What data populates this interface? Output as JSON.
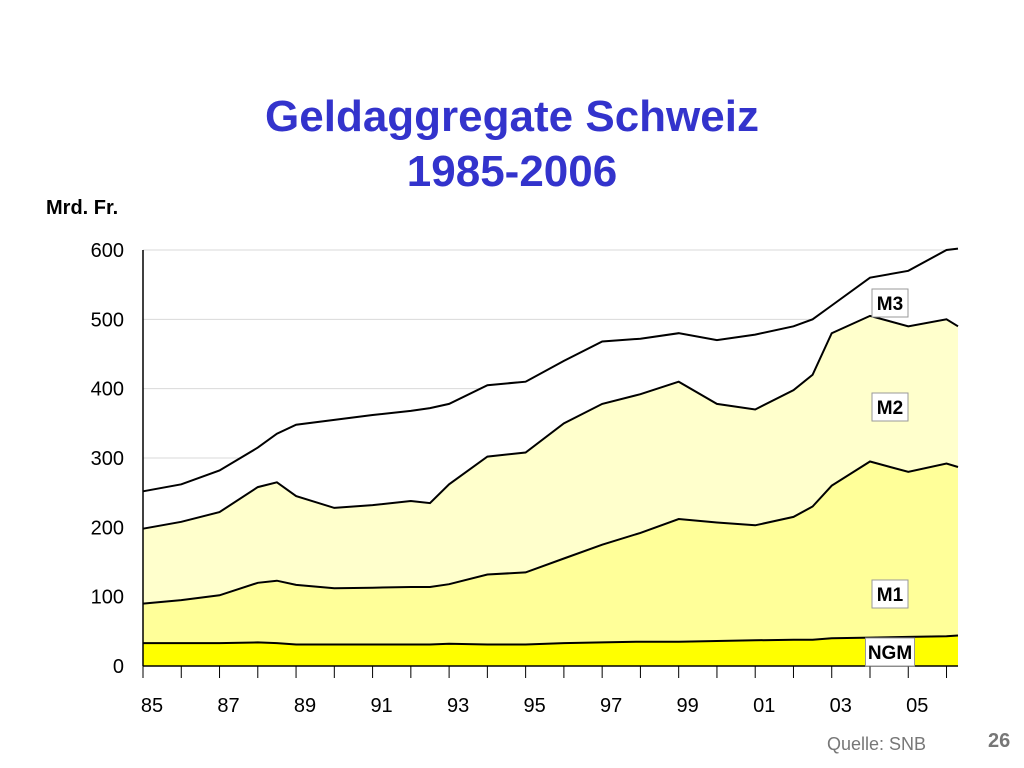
{
  "title_line1": "Geldaggregate Schweiz",
  "title_line2": "1985-2006",
  "unit_label": "Mrd. Fr.",
  "source": "Quelle: SNB",
  "page_number": "26",
  "colors": {
    "M3": "#ffffff",
    "M2": "#ffffcc",
    "M1": "#ffff99",
    "NGM": "#ffff00",
    "stroke": "#000000",
    "grid": "#d9d9d9",
    "title": "#3333cc"
  },
  "chart_data": {
    "type": "area",
    "stacked_cumulative": true,
    "xlabel": "",
    "ylabel": "Mrd. Fr.",
    "xlim": [
      1985,
      2006.3
    ],
    "ylim": [
      0,
      600
    ],
    "y_ticks": [
      0,
      100,
      200,
      300,
      400,
      500,
      600
    ],
    "x_tick_values": [
      1985,
      1987,
      1989,
      1991,
      1993,
      1995,
      1997,
      1999,
      2001,
      2003,
      2005
    ],
    "x_tick_labels": [
      "85",
      "87",
      "89",
      "91",
      "93",
      "95",
      "97",
      "99",
      "01",
      "03",
      "05"
    ],
    "grid": true,
    "x": [
      1985,
      1986,
      1987,
      1988,
      1988.5,
      1989,
      1990,
      1991,
      1992,
      1992.5,
      1993,
      1994,
      1995,
      1996,
      1997,
      1998,
      1999,
      2000,
      2001,
      2002,
      2002.5,
      2003,
      2004,
      2005,
      2006,
      2006.3
    ],
    "series": [
      {
        "name": "M3",
        "values": [
          252,
          262,
          282,
          315,
          335,
          348,
          355,
          362,
          368,
          372,
          378,
          405,
          410,
          440,
          468,
          472,
          480,
          470,
          478,
          490,
          500,
          520,
          560,
          570,
          600,
          602
        ]
      },
      {
        "name": "M2",
        "values": [
          198,
          208,
          222,
          258,
          265,
          245,
          228,
          232,
          238,
          235,
          262,
          302,
          308,
          350,
          378,
          392,
          410,
          378,
          370,
          398,
          420,
          480,
          505,
          490,
          500,
          490
        ]
      },
      {
        "name": "M1",
        "values": [
          90,
          95,
          102,
          120,
          123,
          117,
          112,
          113,
          114,
          114,
          118,
          132,
          135,
          155,
          175,
          192,
          212,
          207,
          203,
          215,
          230,
          260,
          295,
          280,
          292,
          287
        ]
      },
      {
        "name": "NGM",
        "values": [
          33,
          33,
          33,
          34,
          33,
          31,
          31,
          31,
          31,
          31,
          32,
          31,
          31,
          33,
          34,
          35,
          35,
          36,
          37,
          38,
          38,
          40,
          41,
          42,
          43,
          44
        ]
      }
    ],
    "series_labels": [
      "M3",
      "M2",
      "M1",
      "NGM"
    ]
  }
}
